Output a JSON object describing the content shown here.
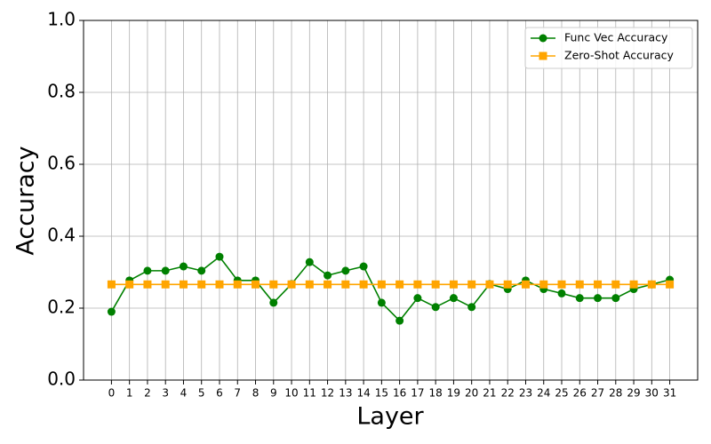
{
  "chart_data": {
    "type": "line",
    "xlabel": "Layer",
    "ylabel": "Accuracy",
    "x": [
      0,
      1,
      2,
      3,
      4,
      5,
      6,
      7,
      8,
      9,
      10,
      11,
      12,
      13,
      14,
      15,
      16,
      17,
      18,
      19,
      20,
      21,
      22,
      23,
      24,
      25,
      26,
      27,
      28,
      29,
      30,
      31
    ],
    "xlim": [
      -1.55,
      32.55
    ],
    "xticks": [
      0,
      1,
      2,
      3,
      4,
      5,
      6,
      7,
      8,
      9,
      10,
      11,
      12,
      13,
      14,
      15,
      16,
      17,
      18,
      19,
      20,
      21,
      22,
      23,
      24,
      25,
      26,
      27,
      28,
      29,
      30,
      31
    ],
    "ylim": [
      0,
      1
    ],
    "yticks": [
      {
        "value": 0,
        "label": "0.0"
      },
      {
        "value": 0.2,
        "label": "0.2"
      },
      {
        "value": 0.4,
        "label": "0.4"
      },
      {
        "value": 0.6,
        "label": "0.6"
      },
      {
        "value": 0.8,
        "label": "0.8"
      },
      {
        "value": 1,
        "label": "1.0"
      }
    ],
    "grid": true,
    "legend": "upper right",
    "series": [
      {
        "name": "Func Vec Accuracy",
        "color": "#008000",
        "marker": "circle",
        "values": [
          0.19,
          0.277,
          0.304,
          0.304,
          0.316,
          0.304,
          0.343,
          0.277,
          0.277,
          0.215,
          0.267,
          0.328,
          0.291,
          0.304,
          0.316,
          0.215,
          0.165,
          0.228,
          0.203,
          0.228,
          0.203,
          0.267,
          0.253,
          0.277,
          0.253,
          0.241,
          0.228,
          0.228,
          0.228,
          0.253,
          0.266,
          0.279
        ]
      },
      {
        "name": "Zero-Shot Accuracy",
        "color": "#ffa500",
        "marker": "square",
        "values": [
          0.266,
          0.266,
          0.266,
          0.266,
          0.266,
          0.266,
          0.266,
          0.266,
          0.266,
          0.266,
          0.266,
          0.266,
          0.266,
          0.266,
          0.266,
          0.266,
          0.266,
          0.266,
          0.266,
          0.266,
          0.266,
          0.266,
          0.266,
          0.266,
          0.266,
          0.266,
          0.266,
          0.266,
          0.266,
          0.266,
          0.266,
          0.266
        ]
      }
    ]
  }
}
